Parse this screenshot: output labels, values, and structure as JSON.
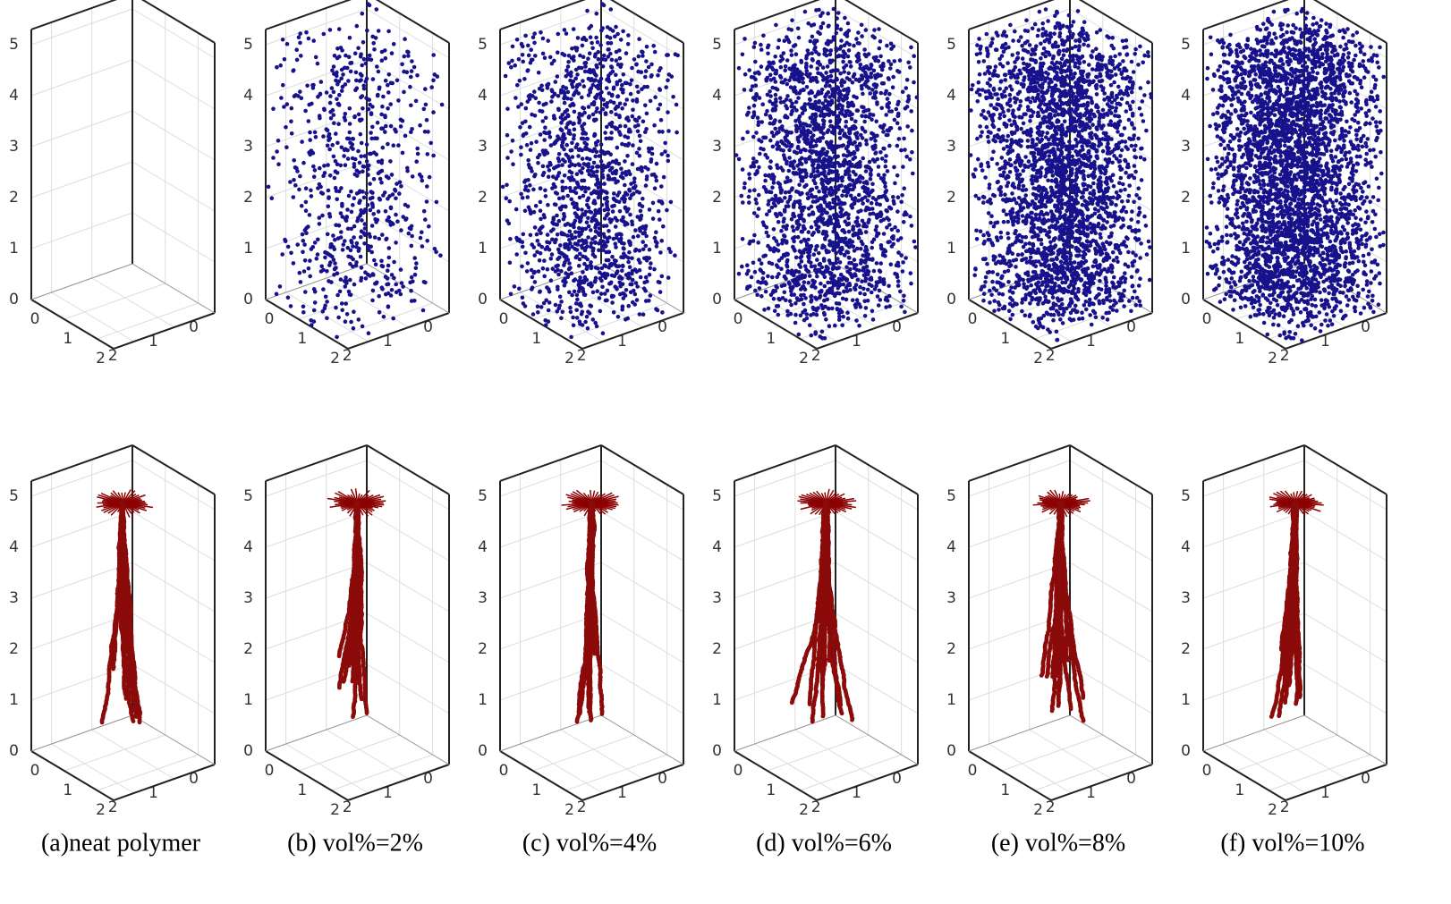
{
  "panels": [
    {
      "caption": "(a)neat polymer",
      "top": {
        "z_ticks": [
          0,
          1,
          2,
          3,
          4,
          5
        ],
        "left_ticks": [
          2,
          1,
          0
        ],
        "right_ticks": [
          0,
          1,
          2
        ]
      },
      "bottom": {
        "z_ticks": [
          0,
          1,
          2,
          3,
          4,
          5
        ],
        "left_ticks": [
          2,
          1,
          0
        ],
        "right_ticks": [
          0,
          1,
          2
        ]
      }
    },
    {
      "caption": "(b) vol%=2%",
      "top": {
        "z_ticks": [
          0,
          1,
          2,
          3,
          4,
          5
        ],
        "left_ticks": [
          2,
          1,
          0
        ],
        "right_ticks": [
          0,
          1,
          2
        ]
      },
      "bottom": {
        "z_ticks": [
          0,
          1,
          2,
          3,
          4,
          5
        ],
        "left_ticks": [
          2,
          1,
          0
        ],
        "right_ticks": [
          0,
          1,
          2
        ]
      }
    },
    {
      "caption": "(c) vol%=4%",
      "top": {
        "z_ticks": [
          0,
          1,
          2,
          3,
          4,
          5
        ],
        "left_ticks": [
          2,
          1,
          0
        ],
        "right_ticks": [
          0,
          1,
          2
        ]
      },
      "bottom": {
        "z_ticks": [
          0,
          1,
          2,
          3,
          4,
          5
        ],
        "left_ticks": [
          2,
          1,
          0
        ],
        "right_ticks": [
          0,
          1,
          2
        ]
      }
    },
    {
      "caption": "(d) vol%=6%",
      "top": {
        "z_ticks": [
          0,
          1,
          2,
          3,
          4,
          5
        ],
        "left_ticks": [
          2,
          1,
          0
        ],
        "right_ticks": [
          0,
          1,
          2
        ]
      },
      "bottom": {
        "z_ticks": [
          0,
          1,
          2,
          3,
          4,
          5
        ],
        "left_ticks": [
          2,
          1,
          0
        ],
        "right_ticks": [
          0,
          1,
          2
        ]
      }
    },
    {
      "caption": "(e) vol%=8%",
      "top": {
        "z_ticks": [
          0,
          1,
          2,
          3,
          4,
          5
        ],
        "left_ticks": [
          2,
          1,
          0
        ],
        "right_ticks": [
          0,
          1,
          2
        ]
      },
      "bottom": {
        "z_ticks": [
          0,
          1,
          2,
          3,
          4,
          5
        ],
        "left_ticks": [
          2,
          1,
          0
        ],
        "right_ticks": [
          0,
          1,
          2
        ]
      }
    },
    {
      "caption": "(f) vol%=10%",
      "top": {
        "z_ticks": [
          0,
          1,
          2,
          3,
          4,
          5
        ],
        "left_ticks": [
          2,
          1,
          0
        ],
        "right_ticks": [
          0,
          1,
          2
        ]
      },
      "bottom": {
        "z_ticks": [
          0,
          1,
          2,
          3,
          4,
          5
        ],
        "left_ticks": [
          2,
          1,
          0
        ],
        "right_ticks": [
          0,
          1,
          2
        ]
      }
    }
  ]
}
